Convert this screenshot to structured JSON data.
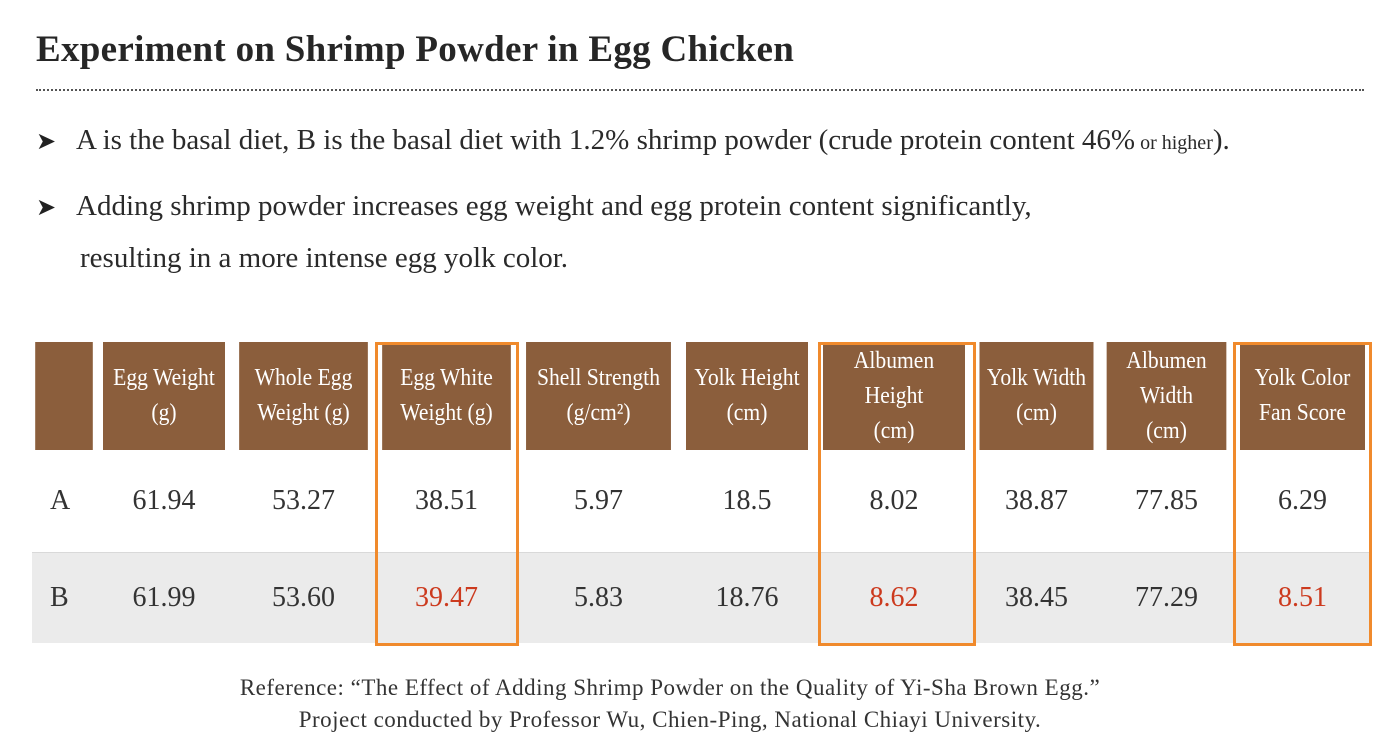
{
  "title": "Experiment on Shrimp Powder in Egg Chicken",
  "bullets": {
    "b1_main": "A is the basal diet, B is the basal diet with 1.2% shrimp powder (crude protein content  46%",
    "b1_small": " or higher",
    "b1_end": ").",
    "b2_line1": "Adding shrimp powder increases egg weight and egg protein content significantly,",
    "b2_line2": "resulting in a more intense egg yolk color."
  },
  "table": {
    "headers": [
      {
        "l1": "Egg Weight",
        "l2": "(g)"
      },
      {
        "l1": "Whole Egg",
        "l2": "Weight (g)"
      },
      {
        "l1": "Egg White",
        "l2": "Weight (g)"
      },
      {
        "l1": "Shell Strength",
        "l2": "(g/cm²)"
      },
      {
        "l1": "Yolk Height",
        "l2": "(cm)"
      },
      {
        "l1": "Albumen Height",
        "l2": "(cm)"
      },
      {
        "l1": "Yolk Width",
        "l2": "(cm)"
      },
      {
        "l1": "Albumen Width",
        "l2": "(cm)"
      },
      {
        "l1": "Yolk Color",
        "l2": "Fan Score"
      }
    ],
    "rows": [
      {
        "label": "A",
        "values": [
          "61.94",
          "53.27",
          "38.51",
          "5.97",
          "18.5",
          "8.02",
          "38.87",
          "77.85",
          "6.29"
        ]
      },
      {
        "label": "B",
        "values": [
          "61.99",
          "53.60",
          "39.47",
          "5.83",
          "18.76",
          "8.62",
          "38.45",
          "77.29",
          "8.51"
        ]
      }
    ],
    "highlighted_columns": [
      "Egg White Weight (g)",
      "Albumen Height (cm)",
      "Yolk Color Fan Score"
    ]
  },
  "reference": {
    "line1": "Reference: “The Effect of Adding Shrimp Powder on the Quality of Yi-Sha Brown Egg.”",
    "line2": "Project conducted by Professor Wu, Chien-Ping, National Chiayi University."
  },
  "colors": {
    "header_bg": "#8b5e3c",
    "highlight_border": "#f08a2c",
    "highlight_value": "#cc3a1e",
    "row_b_bg": "#ebebeb"
  }
}
